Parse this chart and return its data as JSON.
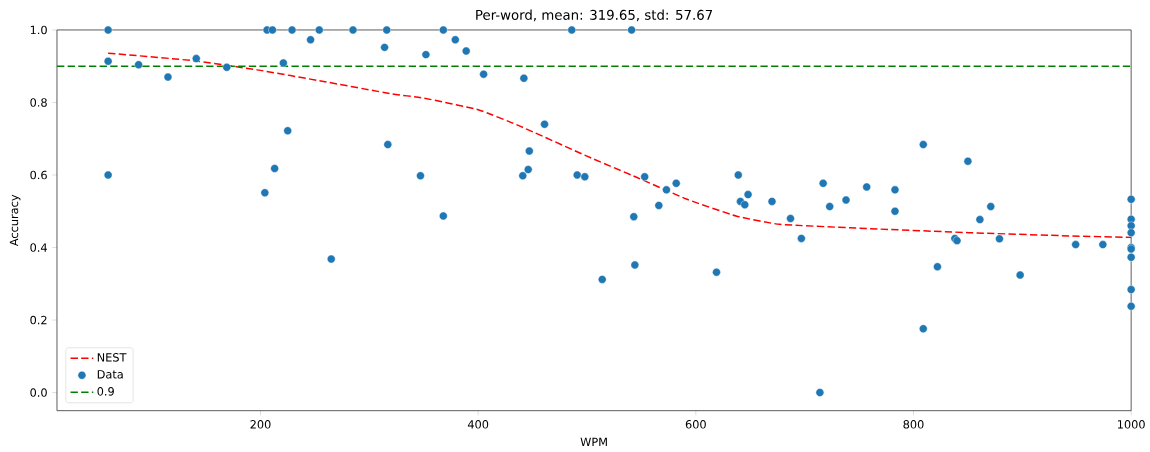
{
  "chart_data": {
    "type": "scatter",
    "title": "Per-word, mean: 319.65, std: 57.67",
    "xlabel": "WPM",
    "ylabel": "Accuracy",
    "xlim": [
      13,
      1000
    ],
    "ylim": [
      -0.05,
      1.0
    ],
    "xticks": [
      200,
      400,
      600,
      800,
      1000
    ],
    "yticks": [
      {
        "value": 0,
        "label": "0.0"
      },
      0.2,
      0.4,
      0.6,
      0.8,
      {
        "value": 1,
        "label": "1.0"
      }
    ],
    "legend": "bottom left",
    "series": [
      {
        "name": "NEST",
        "type": "line",
        "color": "#ff0000",
        "line_style": "dashed",
        "marker": "none",
        "x": [
          60,
          136,
          197,
          258,
          320,
          350,
          400,
          439,
          500,
          546,
          592,
          637,
          677,
          760,
          851,
          943,
          1000
        ],
        "values": [
          0.936,
          0.916,
          0.89,
          0.858,
          0.824,
          0.812,
          0.78,
          0.734,
          0.652,
          0.593,
          0.533,
          0.487,
          0.464,
          0.452,
          0.441,
          0.432,
          0.428
        ]
      },
      {
        "name": "Data",
        "color": "#1f77b4",
        "marker": "circle",
        "x": [
          60,
          60,
          60,
          88,
          115,
          141,
          169,
          204,
          206,
          211,
          213,
          221,
          225,
          229,
          246,
          254,
          265,
          285,
          314,
          316,
          317,
          347,
          352,
          368,
          368,
          379,
          389,
          405,
          442,
          441,
          446,
          447,
          461,
          486,
          491,
          498,
          514,
          541,
          543,
          544,
          553,
          566,
          573,
          582,
          619,
          639,
          641,
          645,
          648,
          670,
          687,
          697,
          714,
          717,
          723,
          738,
          757,
          783,
          783,
          809,
          809,
          822,
          838,
          840,
          850,
          861,
          871,
          879,
          898,
          949,
          974,
          1000,
          1000,
          1000,
          1000,
          1000,
          1000,
          1000,
          1000,
          1000
        ],
        "values": [
          1.0,
          0.914,
          0.6,
          0.904,
          0.87,
          0.921,
          0.897,
          0.551,
          1.0,
          1.0,
          0.618,
          0.909,
          0.722,
          1.0,
          0.973,
          1.0,
          0.368,
          1.0,
          0.952,
          1.0,
          0.684,
          0.598,
          0.932,
          1.0,
          0.487,
          0.973,
          0.942,
          0.878,
          0.867,
          0.598,
          0.615,
          0.666,
          0.74,
          1.0,
          0.6,
          0.595,
          0.312,
          1.0,
          0.485,
          0.352,
          0.595,
          0.516,
          0.559,
          0.577,
          0.332,
          0.6,
          0.527,
          0.518,
          0.546,
          0.527,
          0.48,
          0.425,
          0.0,
          0.577,
          0.513,
          0.531,
          0.567,
          0.559,
          0.5,
          0.684,
          0.176,
          0.347,
          0.425,
          0.419,
          0.638,
          0.477,
          0.513,
          0.424,
          0.324,
          0.408,
          0.408,
          0.533,
          0.478,
          0.46,
          0.441,
          0.4,
          0.396,
          0.373,
          0.284,
          0.238
        ]
      }
    ],
    "ref_lines": [
      {
        "axis": "y",
        "value": 0.9,
        "label": "0.9",
        "color": "#008000",
        "line_style": "dashed"
      }
    ]
  }
}
